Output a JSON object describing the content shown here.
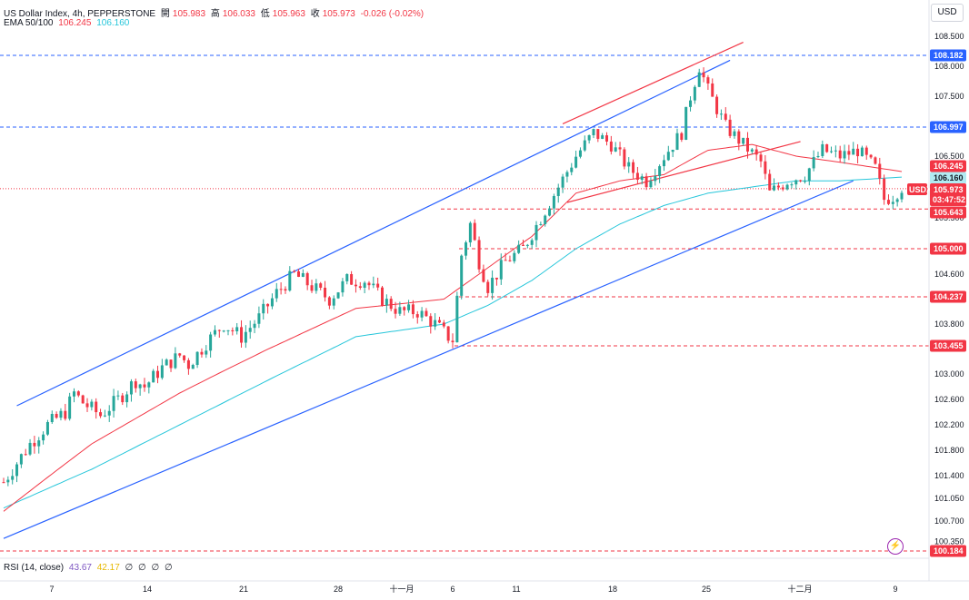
{
  "header": {
    "symbol": "US Dollar Index, 4h, PEPPERSTONE",
    "open_label": "開",
    "open": "105.983",
    "high_label": "高",
    "high": "106.033",
    "low_label": "低",
    "low": "105.963",
    "close_label": "收",
    "close": "105.973",
    "change": "-0.026 (-0.02%)",
    "ema_label": "EMA 50/100",
    "ema50": "106.245",
    "ema100": "106.160"
  },
  "rsi": {
    "label": "RSI (14, close)",
    "v1": "43.67",
    "v2": "42.17",
    "zeros": [
      "∅",
      "∅",
      "∅",
      "∅"
    ]
  },
  "currency": "USD",
  "flash_icon": "lightning-icon",
  "colors": {
    "up": "#26a69a",
    "down": "#f23645",
    "ema50": "#f23645",
    "ema100": "#26c6da",
    "channel": "#2962ff",
    "blue_level": "#2962ff",
    "red_level": "#f23645"
  },
  "chart_data": {
    "type": "candlestick",
    "title": "US Dollar Index, 4h, PEPPERSTONE",
    "ylim": [
      100.1,
      108.7
    ],
    "y_ticks": [
      "108.500",
      "108.000",
      "107.500",
      "106.500",
      "105.500",
      "104.600",
      "103.800",
      "103.000",
      "102.600",
      "102.200",
      "101.800",
      "101.400",
      "101.050",
      "100.700",
      "100.350"
    ],
    "x_ticks": [
      "7",
      "14",
      "21",
      "28",
      "十一月",
      "6",
      "11",
      "18",
      "25",
      "十二月",
      "9"
    ],
    "symbol_tag": "USDX",
    "countdown": "03:47:52",
    "price_levels": [
      {
        "value": "108.182",
        "style": "blue"
      },
      {
        "value": "106.997",
        "style": "blue"
      },
      {
        "value": "106.245",
        "style": "ema50"
      },
      {
        "value": "106.160",
        "style": "ema100"
      },
      {
        "value": "105.973",
        "style": "last"
      },
      {
        "value": "105.643",
        "style": "red"
      },
      {
        "value": "105.000",
        "style": "red"
      },
      {
        "value": "104.237",
        "style": "red"
      },
      {
        "value": "103.455",
        "style": "red"
      },
      {
        "value": "100.184",
        "style": "red"
      }
    ],
    "close_path": [
      [
        0,
        101.3
      ],
      [
        6,
        101.9
      ],
      [
        10,
        102.2
      ],
      [
        14,
        102.4
      ],
      [
        16,
        102.7
      ],
      [
        18,
        102.55
      ],
      [
        22,
        102.35
      ],
      [
        26,
        102.6
      ],
      [
        30,
        102.9
      ],
      [
        32,
        102.8
      ],
      [
        36,
        103.1
      ],
      [
        40,
        103.3
      ],
      [
        42,
        103.15
      ],
      [
        46,
        103.5
      ],
      [
        50,
        103.8
      ],
      [
        54,
        103.6
      ],
      [
        58,
        103.9
      ],
      [
        62,
        104.3
      ],
      [
        66,
        104.6
      ],
      [
        70,
        104.4
      ],
      [
        74,
        104.2
      ],
      [
        78,
        104.5
      ],
      [
        82,
        104.5
      ],
      [
        86,
        104.2
      ],
      [
        90,
        104.0
      ],
      [
        94,
        104.0
      ],
      [
        98,
        103.8
      ],
      [
        101,
        103.6
      ],
      [
        102,
        103.55
      ],
      [
        104,
        104.9
      ],
      [
        106,
        105.4
      ],
      [
        108,
        104.8
      ],
      [
        110,
        104.4
      ],
      [
        114,
        104.8
      ],
      [
        118,
        105.0
      ],
      [
        122,
        105.5
      ],
      [
        126,
        106.0
      ],
      [
        130,
        106.5
      ],
      [
        134,
        106.9
      ],
      [
        138,
        106.7
      ],
      [
        142,
        106.3
      ],
      [
        146,
        106.1
      ],
      [
        150,
        106.5
      ],
      [
        154,
        106.9
      ],
      [
        156,
        107.5
      ],
      [
        158,
        108.0
      ],
      [
        160,
        107.6
      ],
      [
        164,
        107.0
      ],
      [
        168,
        106.7
      ],
      [
        172,
        106.4
      ],
      [
        174,
        105.9
      ],
      [
        178,
        106.1
      ],
      [
        182,
        106.2
      ],
      [
        186,
        106.6
      ],
      [
        190,
        106.5
      ],
      [
        194,
        106.6
      ],
      [
        198,
        106.3
      ],
      [
        200,
        105.8
      ],
      [
        202,
        105.85
      ],
      [
        204,
        106.0
      ]
    ],
    "ema50_path": [
      [
        0,
        100.85
      ],
      [
        20,
        101.9
      ],
      [
        40,
        102.7
      ],
      [
        60,
        103.4
      ],
      [
        80,
        104.05
      ],
      [
        100,
        104.2
      ],
      [
        110,
        104.7
      ],
      [
        120,
        105.2
      ],
      [
        130,
        105.9
      ],
      [
        140,
        106.1
      ],
      [
        150,
        106.2
      ],
      [
        160,
        106.6
      ],
      [
        170,
        106.7
      ],
      [
        180,
        106.5
      ],
      [
        190,
        106.4
      ],
      [
        204,
        106.25
      ]
    ],
    "ema100_path": [
      [
        0,
        100.9
      ],
      [
        20,
        101.5
      ],
      [
        40,
        102.2
      ],
      [
        60,
        102.9
      ],
      [
        80,
        103.6
      ],
      [
        100,
        103.8
      ],
      [
        110,
        104.1
      ],
      [
        120,
        104.5
      ],
      [
        130,
        105.0
      ],
      [
        140,
        105.4
      ],
      [
        150,
        105.7
      ],
      [
        160,
        105.9
      ],
      [
        170,
        106.0
      ],
      [
        180,
        106.1
      ],
      [
        190,
        106.1
      ],
      [
        204,
        106.16
      ]
    ],
    "channel_upper": [
      [
        3,
        102.5
      ],
      [
        165,
        108.1
      ]
    ],
    "channel_lower": [
      [
        0,
        100.4
      ],
      [
        193,
        106.1
      ]
    ],
    "red_upper": [
      [
        127,
        107.05
      ],
      [
        168,
        108.4
      ]
    ],
    "red_mid": [
      [
        128,
        105.75
      ],
      [
        181,
        106.75
      ]
    ]
  }
}
